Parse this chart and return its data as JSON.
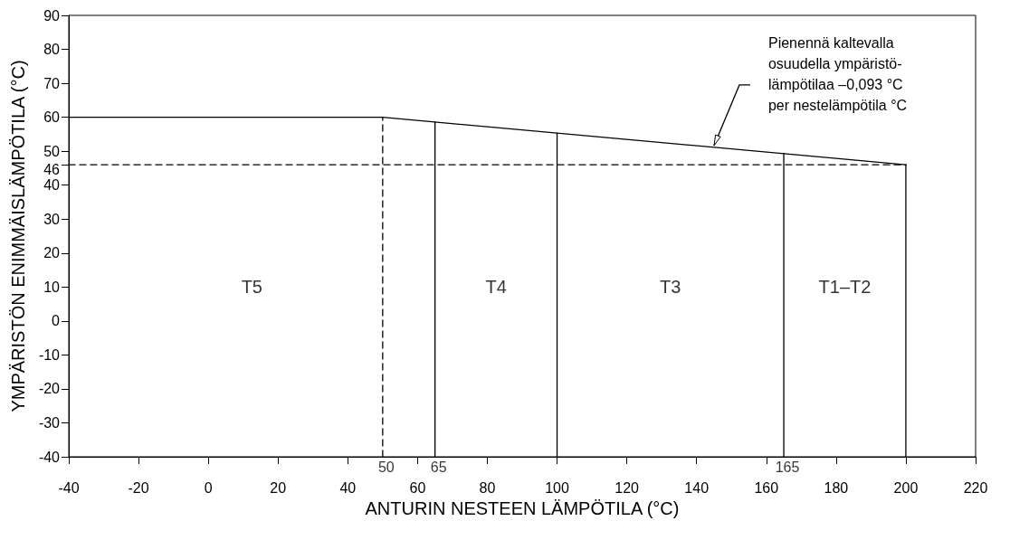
{
  "chart_data": {
    "type": "line",
    "xlabel": "ANTURIN NESTEEN LÄMPÖTILA (°C)",
    "ylabel": "YMPÄRISTÖN ENIMMÄISLÄMPÖTILA (°C)",
    "xlim": [
      -40,
      220
    ],
    "xticks": [
      -40,
      -20,
      0,
      20,
      40,
      60,
      80,
      100,
      120,
      140,
      160,
      180,
      200,
      220
    ],
    "ylim": [
      -40,
      90
    ],
    "yticks": [
      -40,
      -30,
      -20,
      -10,
      0,
      10,
      20,
      30,
      40,
      {
        "value": 46,
        "label": "46"
      },
      50,
      60,
      70,
      80,
      90
    ],
    "grid": false,
    "marker": "none",
    "series": [
      {
        "color": "#000000",
        "x": [
          -40,
          50,
          200
        ],
        "values": [
          60,
          60,
          46
        ]
      },
      {
        "color": "#000000",
        "line_style": "dashed",
        "x": [
          50,
          50
        ],
        "values": [
          -40,
          60
        ]
      },
      {
        "color": "#000000",
        "line_style": "dashed",
        "x": [
          -40,
          200
        ],
        "values": [
          46,
          46
        ]
      },
      {
        "color": "#000000",
        "x": [
          65,
          65
        ],
        "values": [
          -40,
          58.6
        ]
      },
      {
        "color": "#000000",
        "x": [
          100,
          100
        ],
        "values": [
          -40,
          55.3
        ]
      },
      {
        "color": "#000000",
        "x": [
          165,
          165
        ],
        "values": [
          -40,
          49.3
        ]
      },
      {
        "color": "#000000",
        "x": [
          200,
          200
        ],
        "values": [
          -40,
          46
        ]
      }
    ],
    "annotations": [
      "T5",
      "T4",
      "T3",
      "T1–T2",
      {
        "text": "50",
        "x": 50,
        "y": -40
      },
      {
        "text": "65",
        "x": 65,
        "y": -40
      },
      {
        "text": "165",
        "x": 165,
        "y": -40
      },
      {
        "text": "Pienennä kaltevalla\nosuudella ympäristö-\nlämpötilaa –0,093 °C\nper nestelämpötila °C",
        "x": 145,
        "y": 51.4
      }
    ]
  }
}
